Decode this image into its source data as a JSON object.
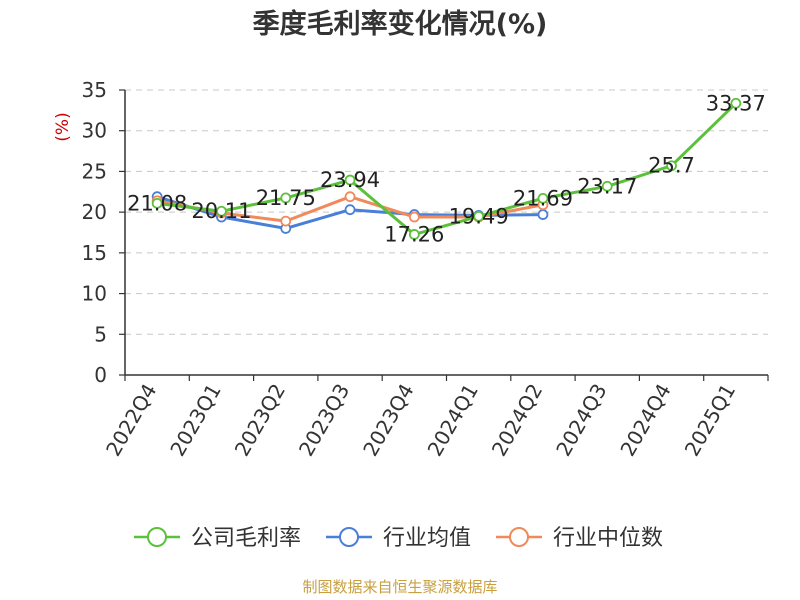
{
  "chart_data": {
    "type": "line",
    "title": "季度毛利率变化情况(%)",
    "ylabel": "(%)",
    "ylim": [
      0,
      35
    ],
    "yticks": [
      0,
      5,
      10,
      15,
      20,
      25,
      30,
      35
    ],
    "grid": true,
    "legend_position": "bottom",
    "categories": [
      "2022Q4",
      "2023Q1",
      "2023Q2",
      "2023Q3",
      "2023Q4",
      "2024Q1",
      "2024Q2",
      "2024Q3",
      "2024Q4",
      "2025Q1"
    ],
    "series": [
      {
        "name": "公司毛利率",
        "color": "#5cc13a",
        "values": [
          21.08,
          20.11,
          21.75,
          23.94,
          17.26,
          19.49,
          21.69,
          23.17,
          25.7,
          33.37
        ],
        "labels": [
          "21.08",
          "20.11",
          "21.75",
          "23.94",
          "17.26",
          "19.49",
          "21.69",
          "23.17",
          "25.7",
          "33.37"
        ]
      },
      {
        "name": "行业均值",
        "color": "#4a7fd8",
        "values": [
          21.9,
          19.4,
          18.0,
          20.3,
          19.7,
          19.6,
          19.7,
          null,
          null,
          null
        ]
      },
      {
        "name": "行业中位数",
        "color": "#f08a5a",
        "values": [
          21.4,
          19.9,
          18.9,
          21.9,
          19.4,
          19.4,
          20.9,
          null,
          null,
          null
        ]
      }
    ]
  },
  "source_text": "制图数据来自恒生聚源数据库"
}
